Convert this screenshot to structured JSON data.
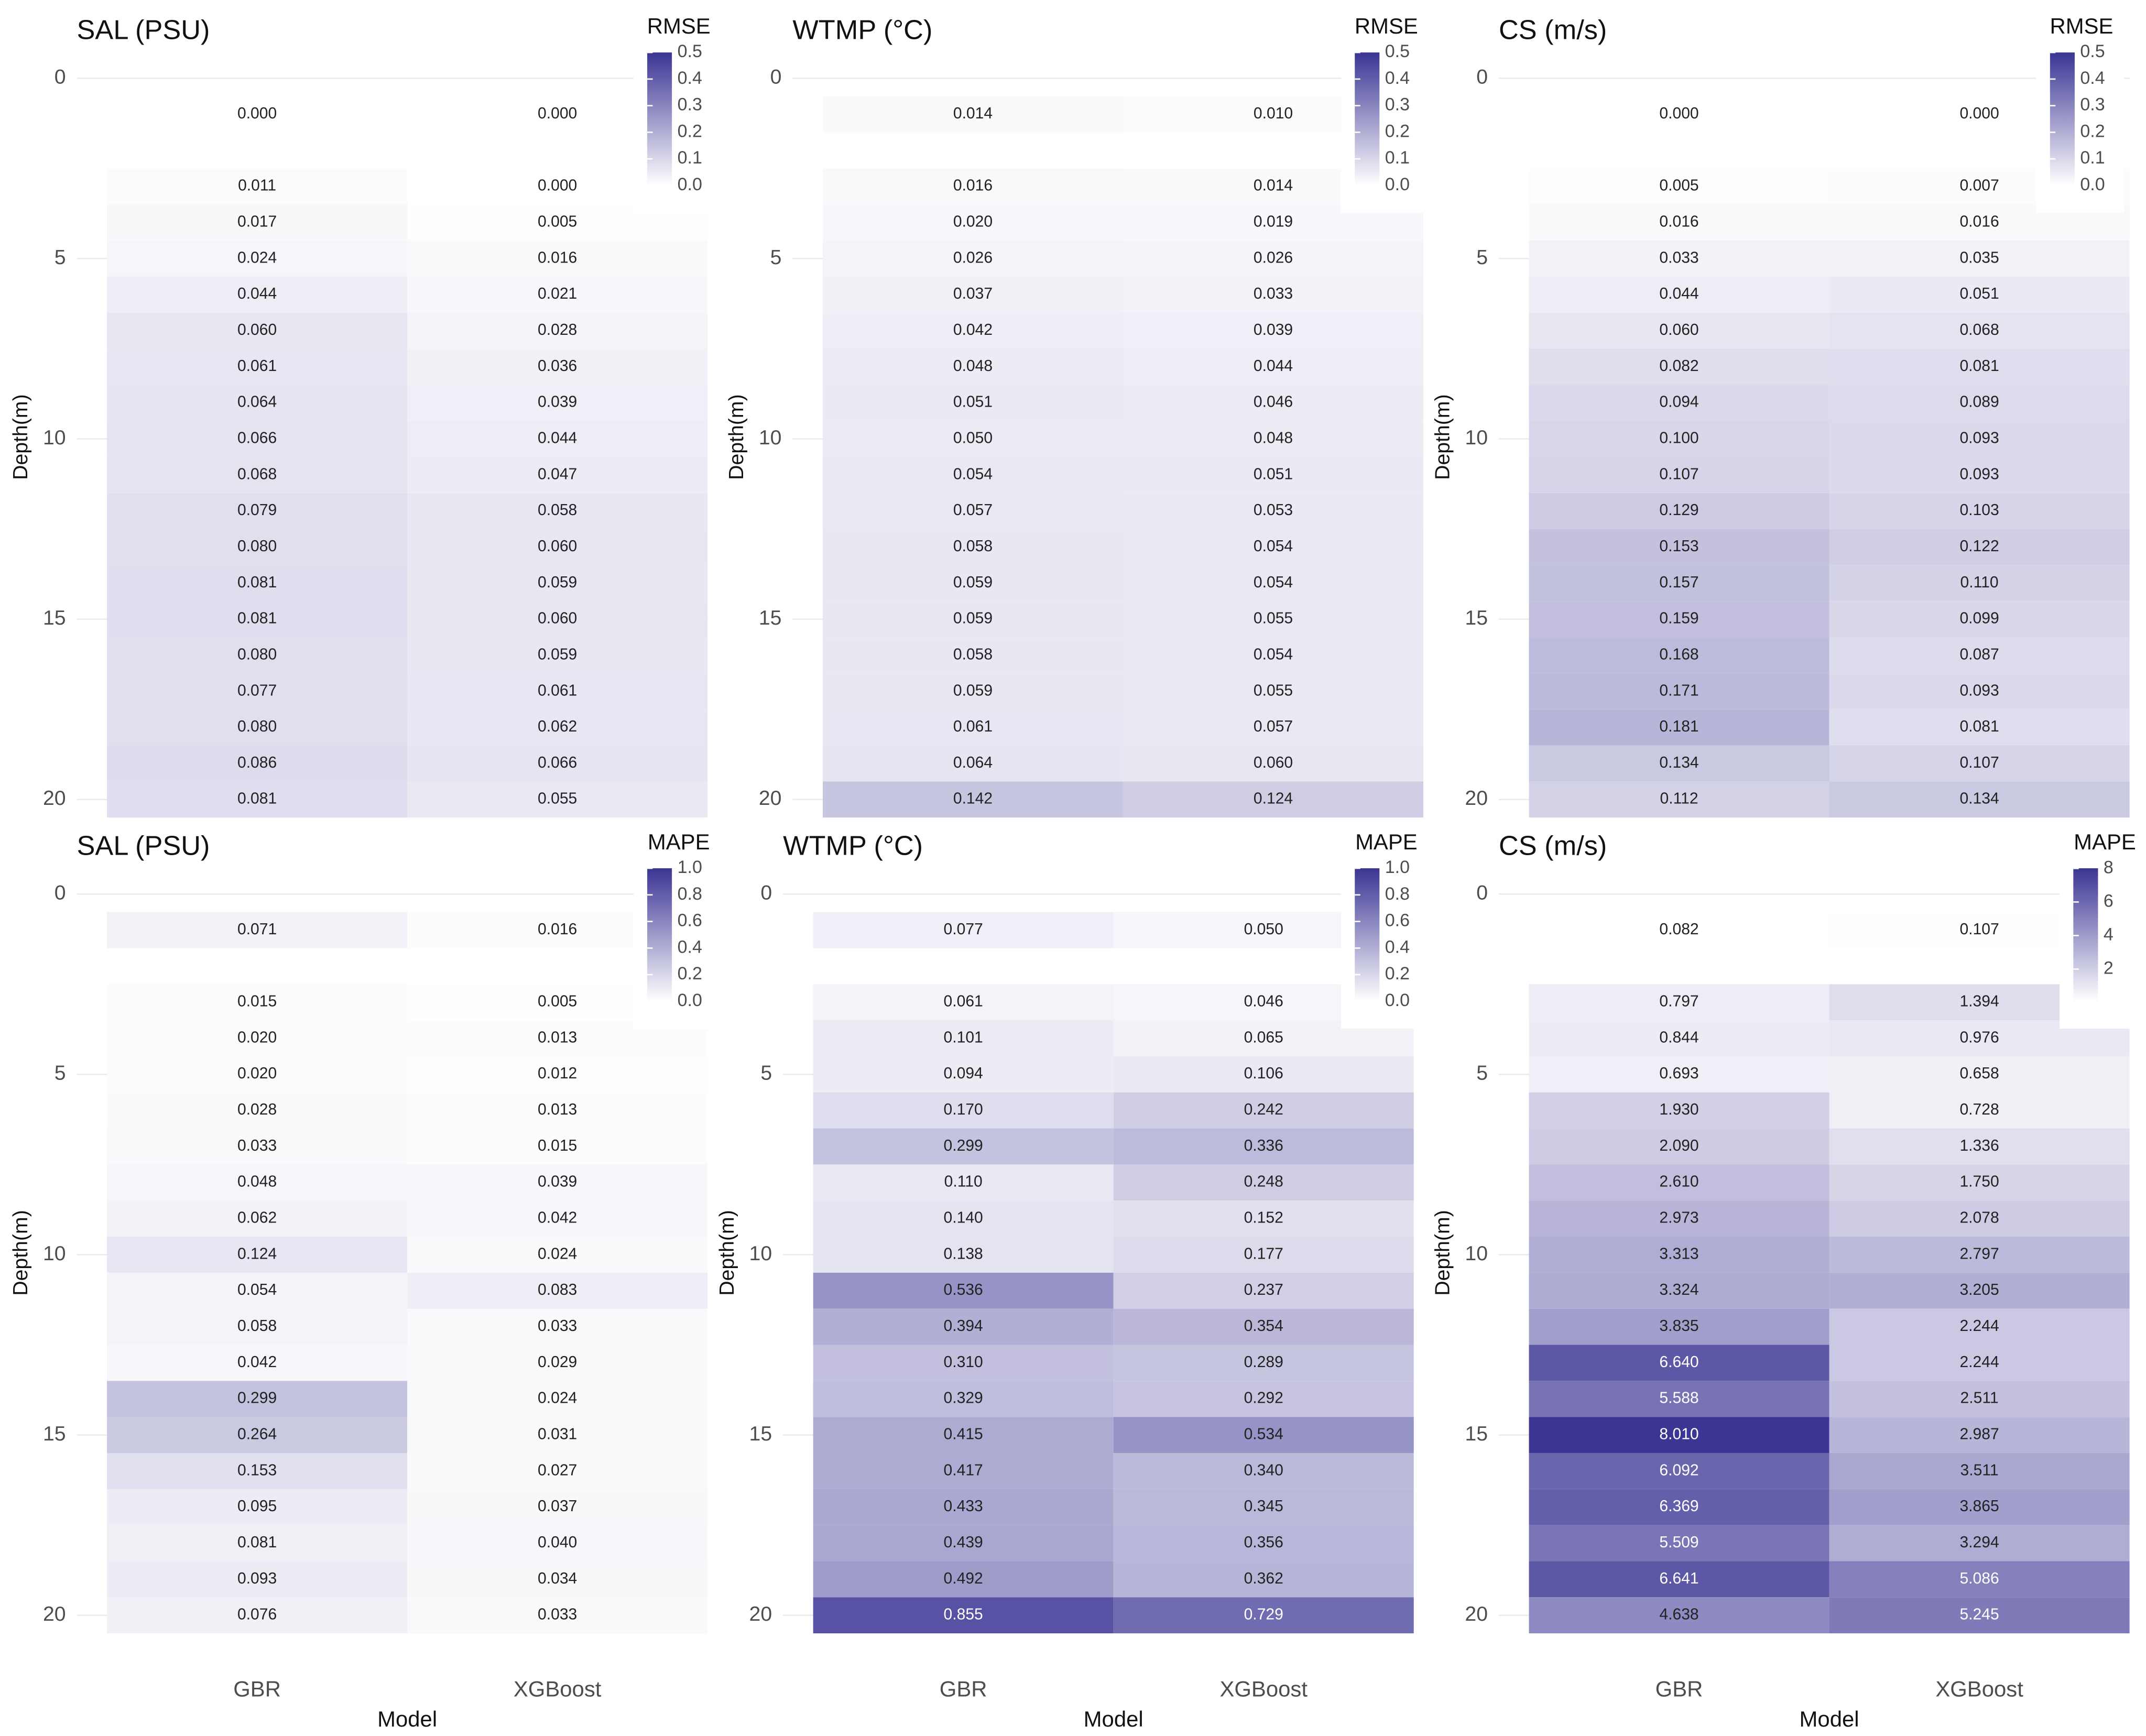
{
  "chart_data": [
    {
      "type": "heatmap",
      "title": "SAL (PSU)",
      "y_label": "Depth(m)",
      "legend_title": "RMSE",
      "y": [
        1,
        3,
        4,
        5,
        6,
        7,
        8,
        9,
        10,
        11,
        12,
        13,
        14,
        15,
        16,
        17,
        18,
        19,
        20
      ],
      "values": [
        [
          0.0,
          0.011,
          0.017,
          0.024,
          0.044,
          0.06,
          0.061,
          0.064,
          0.066,
          0.068,
          0.079,
          0.08,
          0.081,
          0.081,
          0.08,
          0.077,
          0.08,
          0.086,
          0.081
        ],
        [
          0.0,
          0.0,
          0.005,
          0.016,
          0.021,
          0.028,
          0.036,
          0.039,
          0.044,
          0.047,
          0.058,
          0.06,
          0.059,
          0.06,
          0.059,
          0.061,
          0.062,
          0.066,
          0.055
        ]
      ],
      "value_labels": [
        [
          "0.000",
          "0.011",
          "0.017",
          "0.024",
          "0.044",
          "0.060",
          "0.061",
          "0.064",
          "0.066",
          "0.068",
          "0.079",
          "0.080",
          "0.081",
          "0.081",
          "0.080",
          "0.077",
          "0.080",
          "0.086",
          "0.081"
        ],
        [
          "0.000",
          "0.000",
          "0.005",
          "0.016",
          "0.021",
          "0.028",
          "0.036",
          "0.039",
          "0.044",
          "0.047",
          "0.058",
          "0.060",
          "0.059",
          "0.060",
          "0.059",
          "0.061",
          "0.062",
          "0.066",
          "0.055"
        ]
      ],
      "ylim": [
        -0.6,
        20.5
      ],
      "yticks": [
        0,
        5,
        10,
        15,
        20
      ],
      "y_reversed": true,
      "zlim": [
        0,
        0.5
      ],
      "zticks": [
        {
          "value": 0,
          "label": "0.0"
        },
        0.1,
        0.2,
        0.3,
        0.4,
        0.5
      ],
      "colors": [
        "#ffffff",
        "#3b3594"
      ],
      "grid": true
    },
    {
      "type": "heatmap",
      "title": "WTMP (°C)",
      "y_label": "Depth(m)",
      "legend_title": "RMSE",
      "y": [
        1,
        3,
        4,
        5,
        6,
        7,
        8,
        9,
        10,
        11,
        12,
        13,
        14,
        15,
        16,
        17,
        18,
        19,
        20
      ],
      "values": [
        [
          0.014,
          0.016,
          0.02,
          0.026,
          0.037,
          0.042,
          0.048,
          0.051,
          0.05,
          0.054,
          0.057,
          0.058,
          0.059,
          0.059,
          0.058,
          0.059,
          0.061,
          0.064,
          0.142
        ],
        [
          0.01,
          0.014,
          0.019,
          0.026,
          0.033,
          0.039,
          0.044,
          0.046,
          0.048,
          0.051,
          0.053,
          0.054,
          0.054,
          0.055,
          0.054,
          0.055,
          0.057,
          0.06,
          0.124
        ]
      ],
      "value_labels": [
        [
          "0.014",
          "0.016",
          "0.020",
          "0.026",
          "0.037",
          "0.042",
          "0.048",
          "0.051",
          "0.050",
          "0.054",
          "0.057",
          "0.058",
          "0.059",
          "0.059",
          "0.058",
          "0.059",
          "0.061",
          "0.064",
          "0.142"
        ],
        [
          "0.010",
          "0.014",
          "0.019",
          "0.026",
          "0.033",
          "0.039",
          "0.044",
          "0.046",
          "0.048",
          "0.051",
          "0.053",
          "0.054",
          "0.054",
          "0.055",
          "0.054",
          "0.055",
          "0.057",
          "0.060",
          "0.124"
        ]
      ],
      "ylim": [
        -0.6,
        20.5
      ],
      "yticks": [
        0,
        5,
        10,
        15,
        20
      ],
      "y_reversed": true,
      "zlim": [
        0,
        0.5
      ],
      "zticks": [
        {
          "value": 0,
          "label": "0.0"
        },
        0.1,
        0.2,
        0.3,
        0.4,
        0.5
      ],
      "colors": [
        "#ffffff",
        "#3b3594"
      ],
      "grid": true
    },
    {
      "type": "heatmap",
      "title": "CS (m/s)",
      "y_label": "Depth(m)",
      "legend_title": "RMSE",
      "y": [
        1,
        3,
        4,
        5,
        6,
        7,
        8,
        9,
        10,
        11,
        12,
        13,
        14,
        15,
        16,
        17,
        18,
        19,
        20
      ],
      "values": [
        [
          0.0,
          0.005,
          0.016,
          0.033,
          0.044,
          0.06,
          0.082,
          0.094,
          0.1,
          0.107,
          0.129,
          0.153,
          0.157,
          0.159,
          0.168,
          0.171,
          0.181,
          0.134,
          0.112
        ],
        [
          0.0,
          0.007,
          0.016,
          0.035,
          0.051,
          0.068,
          0.081,
          0.089,
          0.093,
          0.093,
          0.103,
          0.122,
          0.11,
          0.099,
          0.087,
          0.093,
          0.081,
          0.107,
          0.134
        ]
      ],
      "value_labels": [
        [
          "0.000",
          "0.005",
          "0.016",
          "0.033",
          "0.044",
          "0.060",
          "0.082",
          "0.094",
          "0.100",
          "0.107",
          "0.129",
          "0.153",
          "0.157",
          "0.159",
          "0.168",
          "0.171",
          "0.181",
          "0.134",
          "0.112"
        ],
        [
          "0.000",
          "0.007",
          "0.016",
          "0.035",
          "0.051",
          "0.068",
          "0.081",
          "0.089",
          "0.093",
          "0.093",
          "0.103",
          "0.122",
          "0.110",
          "0.099",
          "0.087",
          "0.093",
          "0.081",
          "0.107",
          "0.134"
        ]
      ],
      "ylim": [
        -0.6,
        20.5
      ],
      "yticks": [
        0,
        5,
        10,
        15,
        20
      ],
      "y_reversed": true,
      "zlim": [
        0,
        0.5
      ],
      "zticks": [
        {
          "value": 0,
          "label": "0.0"
        },
        0.1,
        0.2,
        0.3,
        0.4,
        0.5
      ],
      "colors": [
        "#ffffff",
        "#3b3594"
      ],
      "grid": true
    },
    {
      "type": "heatmap",
      "title": "SAL (PSU)",
      "y_label": "Depth(m)",
      "legend_title": "MAPE",
      "categories": [
        "GBR",
        "XGBoost"
      ],
      "x_label": "Model",
      "y": [
        1,
        3,
        4,
        5,
        6,
        7,
        8,
        9,
        10,
        11,
        12,
        13,
        14,
        15,
        16,
        17,
        18,
        19,
        20
      ],
      "values": [
        [
          0.071,
          0.015,
          0.02,
          0.02,
          0.028,
          0.033,
          0.048,
          0.062,
          0.124,
          0.054,
          0.058,
          0.042,
          0.299,
          0.264,
          0.153,
          0.095,
          0.081,
          0.093,
          0.076
        ],
        [
          0.016,
          0.005,
          0.013,
          0.012,
          0.013,
          0.015,
          0.039,
          0.042,
          0.024,
          0.083,
          0.033,
          0.029,
          0.024,
          0.031,
          0.027,
          0.037,
          0.04,
          0.034,
          0.033
        ]
      ],
      "value_labels": [
        [
          "0.071",
          "0.015",
          "0.020",
          "0.020",
          "0.028",
          "0.033",
          "0.048",
          "0.062",
          "0.124",
          "0.054",
          "0.058",
          "0.042",
          "0.299",
          "0.264",
          "0.153",
          "0.095",
          "0.081",
          "0.093",
          "0.076"
        ],
        [
          "0.016",
          "0.005",
          "0.013",
          "0.012",
          "0.013",
          "0.015",
          "0.039",
          "0.042",
          "0.024",
          "0.083",
          "0.033",
          "0.029",
          "0.024",
          "0.031",
          "0.027",
          "0.037",
          "0.040",
          "0.034",
          "0.033"
        ]
      ],
      "ylim": [
        -0.6,
        20.5
      ],
      "yticks": [
        0,
        5,
        10,
        15,
        20
      ],
      "y_reversed": true,
      "zlim": [
        0,
        1
      ],
      "zticks": [
        {
          "value": 0,
          "label": "0.0"
        },
        0.2,
        0.4,
        0.6,
        0.8,
        {
          "value": 1,
          "label": "1.0"
        }
      ],
      "colors": [
        "#ffffff",
        "#3b3594"
      ],
      "grid": true
    },
    {
      "type": "heatmap",
      "title": "WTMP (°C)",
      "y_label": "Depth(m)",
      "legend_title": "MAPE",
      "categories": [
        "GBR",
        "XGBoost"
      ],
      "x_label": "Model",
      "y": [
        1,
        3,
        4,
        5,
        6,
        7,
        8,
        9,
        10,
        11,
        12,
        13,
        14,
        15,
        16,
        17,
        18,
        19,
        20
      ],
      "values": [
        [
          0.077,
          0.061,
          0.101,
          0.094,
          0.17,
          0.299,
          0.11,
          0.14,
          0.138,
          0.536,
          0.394,
          0.31,
          0.329,
          0.415,
          0.417,
          0.433,
          0.439,
          0.492,
          0.855
        ],
        [
          0.05,
          0.046,
          0.065,
          0.106,
          0.242,
          0.336,
          0.248,
          0.152,
          0.177,
          0.237,
          0.354,
          0.289,
          0.292,
          0.534,
          0.34,
          0.345,
          0.356,
          0.362,
          0.729
        ]
      ],
      "value_labels": [
        [
          "0.077",
          "0.061",
          "0.101",
          "0.094",
          "0.170",
          "0.299",
          "0.110",
          "0.140",
          "0.138",
          "0.536",
          "0.394",
          "0.310",
          "0.329",
          "0.415",
          "0.417",
          "0.433",
          "0.439",
          "0.492",
          "0.855"
        ],
        [
          "0.050",
          "0.046",
          "0.065",
          "0.106",
          "0.242",
          "0.336",
          "0.248",
          "0.152",
          "0.177",
          "0.237",
          "0.354",
          "0.289",
          "0.292",
          "0.534",
          "0.340",
          "0.345",
          "0.356",
          "0.362",
          "0.729"
        ]
      ],
      "ylim": [
        -0.6,
        20.5
      ],
      "yticks": [
        0,
        5,
        10,
        15,
        20
      ],
      "y_reversed": true,
      "zlim": [
        0,
        1
      ],
      "zticks": [
        {
          "value": 0,
          "label": "0.0"
        },
        0.2,
        0.4,
        0.6,
        0.8,
        {
          "value": 1,
          "label": "1.0"
        }
      ],
      "colors": [
        "#ffffff",
        "#3b3594"
      ],
      "grid": true
    },
    {
      "type": "heatmap",
      "title": "CS (m/s)",
      "y_label": "Depth(m)",
      "legend_title": "MAPE",
      "categories": [
        "GBR",
        "XGBoost"
      ],
      "x_label": "Model",
      "y": [
        1,
        3,
        4,
        5,
        6,
        7,
        8,
        9,
        10,
        11,
        12,
        13,
        14,
        15,
        16,
        17,
        18,
        19,
        20
      ],
      "values": [
        [
          0.082,
          0.797,
          0.844,
          0.693,
          1.93,
          2.09,
          2.61,
          2.973,
          3.313,
          3.324,
          3.835,
          6.64,
          5.588,
          8.01,
          6.092,
          6.369,
          5.509,
          6.641,
          4.638
        ],
        [
          0.107,
          1.394,
          0.976,
          0.658,
          0.728,
          1.336,
          1.75,
          2.078,
          2.797,
          3.205,
          2.244,
          2.244,
          2.511,
          2.987,
          3.511,
          3.865,
          3.294,
          5.086,
          5.245
        ]
      ],
      "value_labels": [
        [
          "0.082",
          "0.797",
          "0.844",
          "0.693",
          "1.930",
          "2.090",
          "2.610",
          "2.973",
          "3.313",
          "3.324",
          "3.835",
          "6.640",
          "5.588",
          "8.010",
          "6.092",
          "6.369",
          "5.509",
          "6.641",
          "4.638"
        ],
        [
          "0.107",
          "1.394",
          "0.976",
          "0.658",
          "0.728",
          "1.336",
          "1.750",
          "2.078",
          "2.797",
          "3.205",
          "2.244",
          "2.244",
          "2.511",
          "2.987",
          "3.511",
          "3.865",
          "3.294",
          "5.086",
          "5.245"
        ]
      ],
      "ylim": [
        -0.6,
        20.5
      ],
      "yticks": [
        0,
        5,
        10,
        15,
        20
      ],
      "y_reversed": true,
      "zlim": [
        0.082,
        8.01
      ],
      "zticks": [
        2,
        4,
        6,
        8
      ],
      "colors": [
        "#ffffff",
        "#3b3594"
      ],
      "grid": true
    }
  ]
}
